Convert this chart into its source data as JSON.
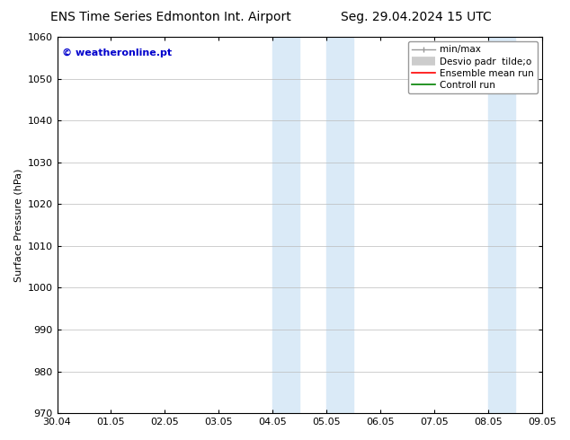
{
  "title_left": "ENS Time Series Edmonton Int. Airport",
  "title_right": "Seg. 29.04.2024 15 UTC",
  "ylabel": "Surface Pressure (hPa)",
  "ylim": [
    970,
    1060
  ],
  "yticks": [
    970,
    980,
    990,
    1000,
    1010,
    1020,
    1030,
    1040,
    1050,
    1060
  ],
  "xtick_labels": [
    "30.04",
    "01.05",
    "02.05",
    "03.05",
    "04.05",
    "05.05",
    "06.05",
    "07.05",
    "08.05",
    "09.05"
  ],
  "xtick_positions": [
    0,
    1,
    2,
    3,
    4,
    5,
    6,
    7,
    8,
    9
  ],
  "shaded_bands": [
    {
      "xmin": 4.0,
      "xmax": 4.5,
      "color": "#daeaf7"
    },
    {
      "xmin": 5.0,
      "xmax": 5.5,
      "color": "#daeaf7"
    },
    {
      "xmin": 8.0,
      "xmax": 8.5,
      "color": "#daeaf7"
    }
  ],
  "watermark_text": "© weatheronline.pt",
  "watermark_color": "#0000cc",
  "background_color": "#ffffff",
  "legend_labels": [
    "min/max",
    "Desvio padr  tilde;o",
    "Ensemble mean run",
    "Controll run"
  ],
  "legend_colors": [
    "#999999",
    "#cccccc",
    "#ff0000",
    "#008000"
  ],
  "grid_color": "#bbbbbb",
  "spine_color": "#000000",
  "tick_color": "#000000",
  "font_size_title": 10,
  "font_size_ticks": 8,
  "font_size_legend": 7.5,
  "font_size_ylabel": 8,
  "font_size_watermark": 8
}
